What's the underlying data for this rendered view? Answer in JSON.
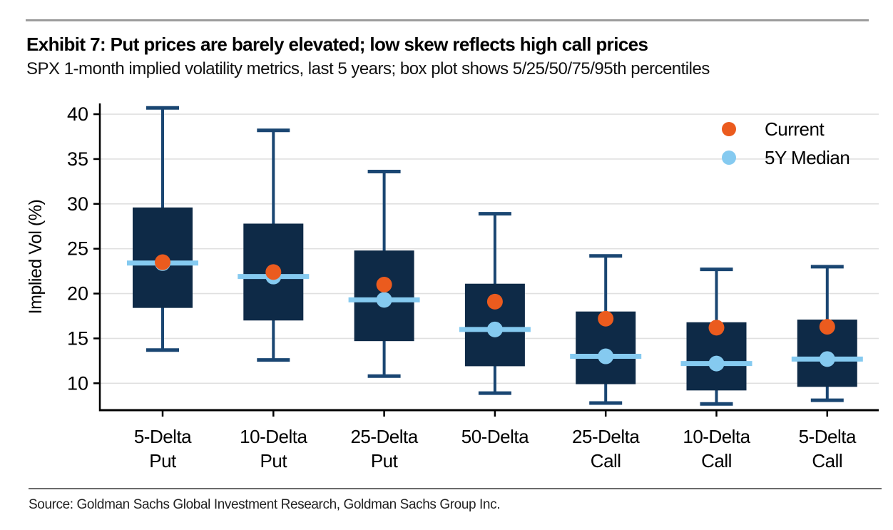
{
  "header": {
    "title": "Exhibit 7: Put prices are barely elevated; low skew reflects high call prices",
    "subtitle": "SPX 1-month implied volatility metrics, last 5 years; box plot shows 5/25/50/75/95th percentiles"
  },
  "footer": {
    "source": "Source: Goldman Sachs Global Investment Research, Goldman Sachs Group Inc."
  },
  "chart_data": {
    "type": "boxplot",
    "description": "SPX 1-month implied vol box plots (5/25/50/75/95th percentiles) with current and 5Y median markers",
    "ylabel": "Implied Vol (%)",
    "ylim": [
      7.0,
      41.2
    ],
    "yticks": [
      10,
      15,
      20,
      25,
      30,
      35,
      40
    ],
    "grid": true,
    "legend_position": "top-right",
    "legend": [
      {
        "label": "Current",
        "color": "#eb5b1e"
      },
      {
        "label": "5Y Median",
        "color": "#85caf0"
      }
    ],
    "categories": [
      {
        "label_lines": [
          "5-Delta",
          "Put"
        ]
      },
      {
        "label_lines": [
          "10-Delta",
          "Put"
        ]
      },
      {
        "label_lines": [
          "25-Delta",
          "Put"
        ]
      },
      {
        "label_lines": [
          "50-Delta"
        ]
      },
      {
        "label_lines": [
          "25-Delta",
          "Call"
        ]
      },
      {
        "label_lines": [
          "10-Delta",
          "Call"
        ]
      },
      {
        "label_lines": [
          "5-Delta",
          "Call"
        ]
      }
    ],
    "series": [
      {
        "category": "5-Delta Put",
        "p5": 13.7,
        "p25": 18.4,
        "p50": 23.4,
        "p75": 29.6,
        "p95": 40.7,
        "current": 23.5,
        "median_5y": 23.4
      },
      {
        "category": "10-Delta Put",
        "p5": 12.6,
        "p25": 17.0,
        "p50": 21.9,
        "p75": 27.8,
        "p95": 38.2,
        "current": 22.4,
        "median_5y": 21.9
      },
      {
        "category": "25-Delta Put",
        "p5": 10.8,
        "p25": 14.7,
        "p50": 19.3,
        "p75": 24.8,
        "p95": 33.6,
        "current": 21.0,
        "median_5y": 19.3
      },
      {
        "category": "50-Delta",
        "p5": 8.9,
        "p25": 11.9,
        "p50": 16.0,
        "p75": 21.1,
        "p95": 28.9,
        "current": 19.1,
        "median_5y": 16.0
      },
      {
        "category": "25-Delta Call",
        "p5": 7.8,
        "p25": 9.9,
        "p50": 13.0,
        "p75": 18.0,
        "p95": 24.2,
        "current": 17.2,
        "median_5y": 13.0
      },
      {
        "category": "10-Delta Call",
        "p5": 7.7,
        "p25": 9.2,
        "p50": 12.2,
        "p75": 16.8,
        "p95": 22.7,
        "current": 16.2,
        "median_5y": 12.2
      },
      {
        "category": "5-Delta Call",
        "p5": 8.1,
        "p25": 9.6,
        "p50": 12.7,
        "p75": 17.1,
        "p95": 23.0,
        "current": 16.3,
        "median_5y": 12.7
      }
    ],
    "colors": {
      "box_fill": "#0e2a47",
      "whisker": "#1a4672",
      "median_line": "#85caf0",
      "median_dot": "#85caf0",
      "current_dot": "#eb5b1e",
      "gridline": "#e0e0e0",
      "axis": "#000000",
      "tick_text": "#000000"
    }
  }
}
